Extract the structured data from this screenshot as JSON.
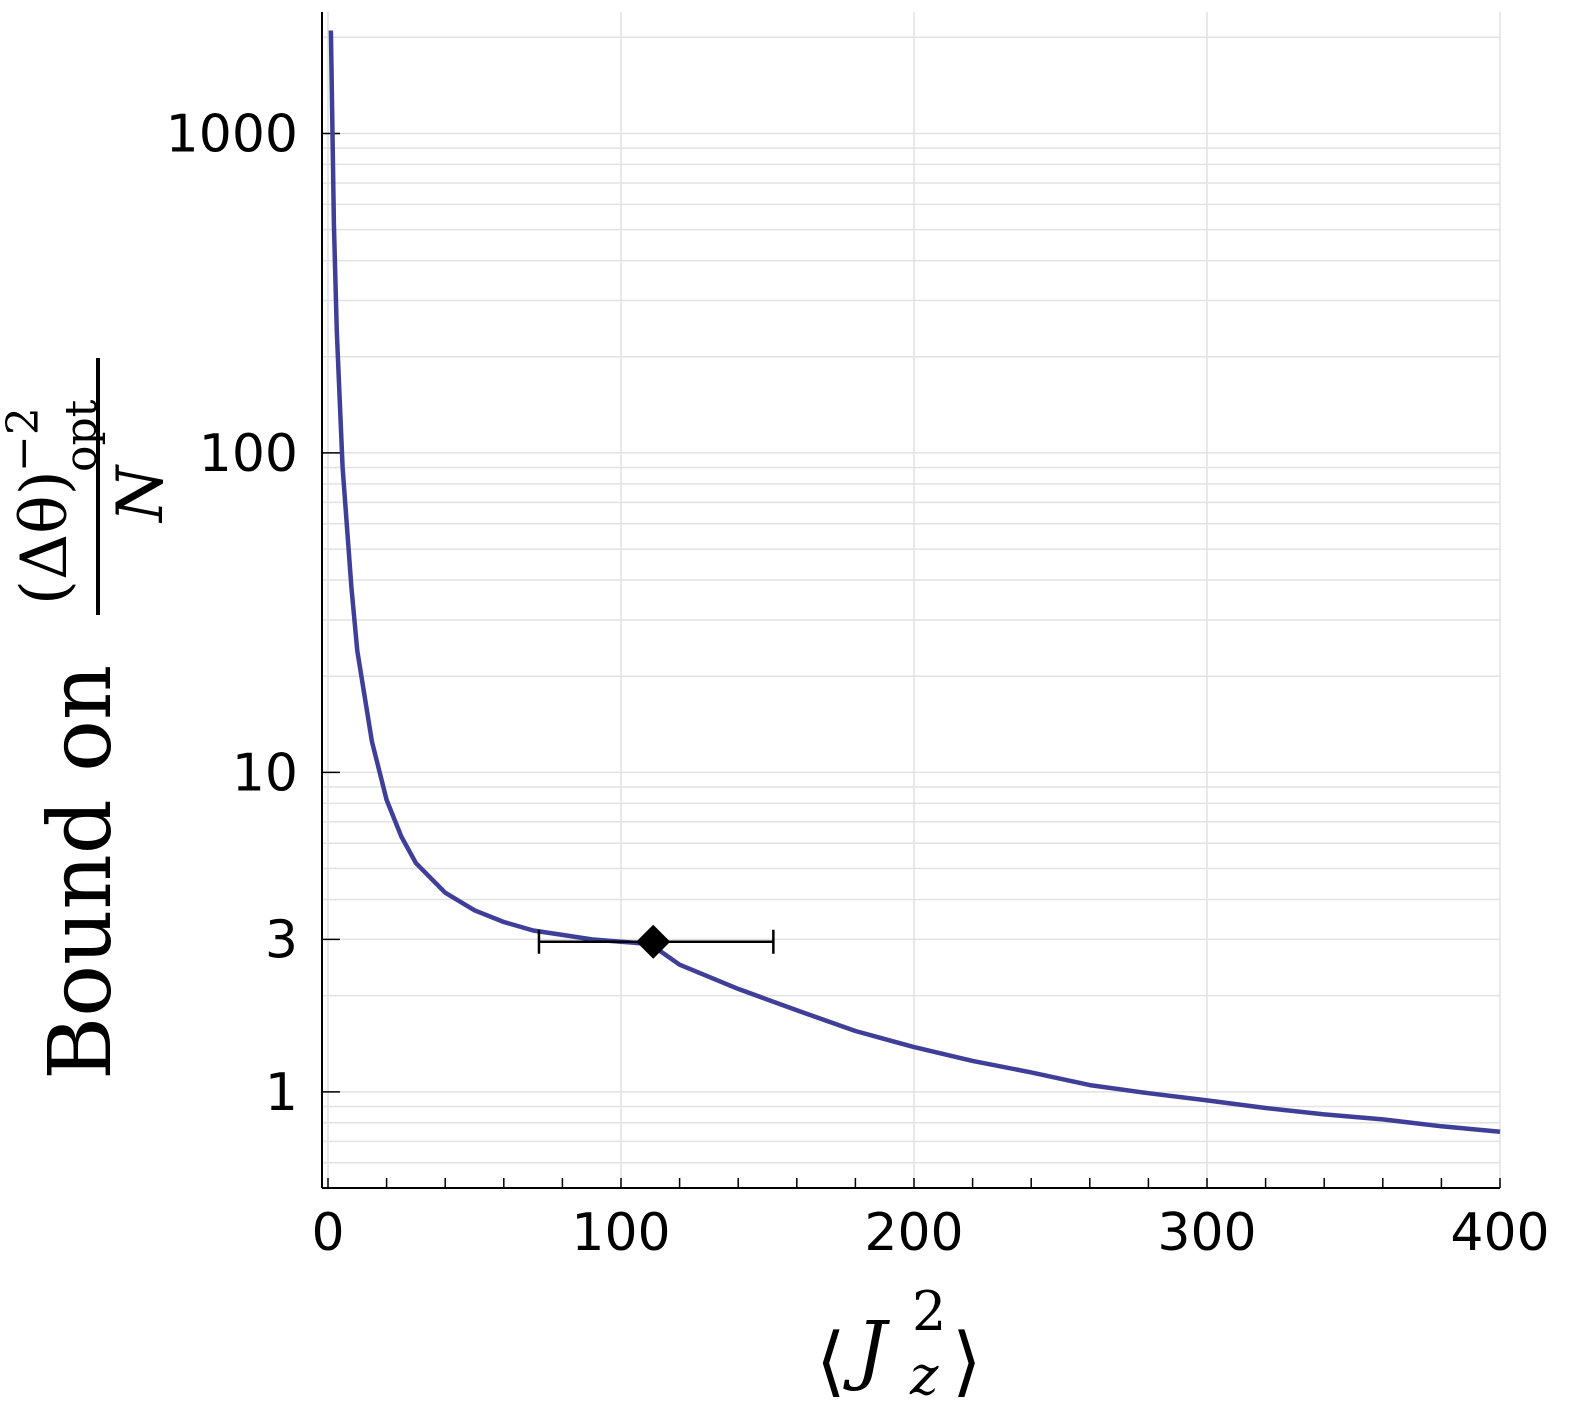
{
  "chart_data": {
    "type": "line",
    "title": "",
    "xlabel": {
      "open": "⟨",
      "base": "J",
      "sup": "2",
      "sub": "z",
      "close": "⟩"
    },
    "ylabel": {
      "prefix": "Bound on",
      "numerator": "(Δθ)",
      "num_sup": "−2",
      "num_sub": "opt",
      "denominator": "N"
    },
    "xlim": [
      0,
      400
    ],
    "ylim": [
      0.5,
      2400
    ],
    "yscale": "log",
    "grid": true,
    "legend": "none",
    "x_ticks": [
      {
        "value": 0,
        "label": "0"
      },
      {
        "value": 100,
        "label": "100"
      },
      {
        "value": 200,
        "label": "200"
      },
      {
        "value": 300,
        "label": "300"
      },
      {
        "value": 400,
        "label": "400"
      }
    ],
    "y_ticks": [
      {
        "value": 1,
        "label": "1"
      },
      {
        "value": 3,
        "label": "3"
      },
      {
        "value": 10,
        "label": "10"
      },
      {
        "value": 100,
        "label": "100"
      },
      {
        "value": 1000,
        "label": "1000"
      }
    ],
    "series": [
      {
        "color": "#3f3f99",
        "x": [
          1,
          2,
          3,
          5,
          8,
          10,
          15,
          20,
          25,
          30,
          40,
          50,
          60,
          70,
          80,
          90,
          100,
          110,
          120,
          140,
          160,
          180,
          200,
          220,
          240,
          260,
          280,
          300,
          320,
          340,
          360,
          380,
          400
        ],
        "y": [
          2100,
          520,
          240,
          90,
          38,
          24,
          12.5,
          8.2,
          6.3,
          5.2,
          4.2,
          3.7,
          3.4,
          3.2,
          3.1,
          3.0,
          2.95,
          2.9,
          2.5,
          2.1,
          1.8,
          1.55,
          1.38,
          1.25,
          1.15,
          1.05,
          0.99,
          0.94,
          0.89,
          0.85,
          0.82,
          0.78,
          0.75
        ]
      }
    ],
    "points": [
      {
        "x": 111,
        "y": 2.95,
        "xerr_low": 72,
        "xerr_high": 152,
        "marker": "diamond",
        "color": "#000000"
      }
    ]
  }
}
